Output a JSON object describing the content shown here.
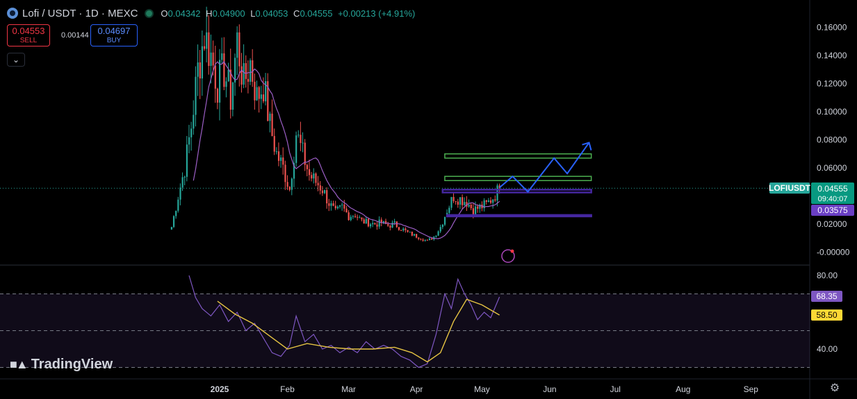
{
  "header": {
    "symbol": "Lofi / USDT · 1D · MEXC",
    "open_key": "O",
    "open": "0.04342",
    "high_key": "H",
    "high": "0.04900",
    "low_key": "L",
    "low": "0.04053",
    "close_key": "C",
    "close": "0.04555",
    "change": "+0.00213 (+4.91%)"
  },
  "trade": {
    "sell_price": "0.04553",
    "sell_label": "SELL",
    "spread": "0.00144",
    "buy_price": "0.04697",
    "buy_label": "BUY",
    "collapse_icon": "chevron-down-icon"
  },
  "branding": {
    "logo_text": "TradingView"
  },
  "colors": {
    "up": "#26a69a",
    "down": "#ef5350",
    "ma": "#9c5fc6",
    "rsi": "#7e57c2",
    "rsi_ma": "#e6c443",
    "green_zone": "#4caf50",
    "purple_zone": "#4527a0",
    "projection": "#2962ff"
  },
  "chart_data": [
    {
      "type": "line",
      "series_style": "candlestick",
      "y_ticks": [
        "0.16000",
        "0.14000",
        "0.12000",
        "0.10000",
        "0.08000",
        "0.06000",
        "0.02000",
        "-0.00000"
      ],
      "x_ticks": [
        "2025",
        "Feb",
        "Mar",
        "Apr",
        "May",
        "Jun",
        "Jul",
        "Aug",
        "Sep"
      ],
      "ylim": [
        -0.002,
        0.17
      ],
      "price_label": {
        "symbol": "LOFIUSDT",
        "value": "0.04555",
        "countdown": "09:40:07"
      },
      "level_label": "0.03575",
      "last_price": 0.04555,
      "close_series": [
        {
          "date": "2024-12-10",
          "v": 0.018
        },
        {
          "date": "2024-12-13",
          "v": 0.04
        },
        {
          "date": "2024-12-16",
          "v": 0.06
        },
        {
          "date": "2024-12-19",
          "v": 0.09
        },
        {
          "date": "2024-12-22",
          "v": 0.13
        },
        {
          "date": "2024-12-25",
          "v": 0.155
        },
        {
          "date": "2024-12-28",
          "v": 0.14
        },
        {
          "date": "2024-12-31",
          "v": 0.12
        },
        {
          "date": "2025-01-03",
          "v": 0.13
        },
        {
          "date": "2025-01-06",
          "v": 0.11
        },
        {
          "date": "2025-01-09",
          "v": 0.15
        },
        {
          "date": "2025-01-12",
          "v": 0.12
        },
        {
          "date": "2025-01-15",
          "v": 0.135
        },
        {
          "date": "2025-01-18",
          "v": 0.11
        },
        {
          "date": "2025-01-21",
          "v": 0.12
        },
        {
          "date": "2025-01-24",
          "v": 0.09
        },
        {
          "date": "2025-01-27",
          "v": 0.07
        },
        {
          "date": "2025-01-30",
          "v": 0.06
        },
        {
          "date": "2025-02-02",
          "v": 0.045
        },
        {
          "date": "2025-02-05",
          "v": 0.085
        },
        {
          "date": "2025-02-08",
          "v": 0.07
        },
        {
          "date": "2025-02-11",
          "v": 0.055
        },
        {
          "date": "2025-02-14",
          "v": 0.05
        },
        {
          "date": "2025-02-17",
          "v": 0.045
        },
        {
          "date": "2025-02-20",
          "v": 0.035
        },
        {
          "date": "2025-02-23",
          "v": 0.028
        },
        {
          "date": "2025-02-26",
          "v": 0.032
        },
        {
          "date": "2025-03-01",
          "v": 0.026
        },
        {
          "date": "2025-03-04",
          "v": 0.027
        },
        {
          "date": "2025-03-07",
          "v": 0.022
        },
        {
          "date": "2025-03-10",
          "v": 0.021
        },
        {
          "date": "2025-03-13",
          "v": 0.02
        },
        {
          "date": "2025-03-16",
          "v": 0.021
        },
        {
          "date": "2025-03-19",
          "v": 0.019
        },
        {
          "date": "2025-03-22",
          "v": 0.02
        },
        {
          "date": "2025-03-25",
          "v": 0.017
        },
        {
          "date": "2025-03-28",
          "v": 0.014
        },
        {
          "date": "2025-03-31",
          "v": 0.012
        },
        {
          "date": "2025-04-03",
          "v": 0.01
        },
        {
          "date": "2025-04-06",
          "v": 0.008
        },
        {
          "date": "2025-04-09",
          "v": 0.011
        },
        {
          "date": "2025-04-12",
          "v": 0.018
        },
        {
          "date": "2025-04-15",
          "v": 0.03
        },
        {
          "date": "2025-04-18",
          "v": 0.04
        },
        {
          "date": "2025-04-21",
          "v": 0.038
        },
        {
          "date": "2025-04-24",
          "v": 0.036
        },
        {
          "date": "2025-04-27",
          "v": 0.03
        },
        {
          "date": "2025-04-30",
          "v": 0.032
        },
        {
          "date": "2025-05-03",
          "v": 0.034
        },
        {
          "date": "2025-05-06",
          "v": 0.039
        },
        {
          "date": "2025-05-09",
          "v": 0.04555
        }
      ],
      "zones": [
        {
          "kind": "green",
          "top": 0.07,
          "bottom": 0.067,
          "from": "2025-04-14",
          "to": "2025-06-20"
        },
        {
          "kind": "green",
          "top": 0.054,
          "bottom": 0.051,
          "from": "2025-04-14",
          "to": "2025-06-20"
        },
        {
          "kind": "purple",
          "top": 0.0445,
          "bottom": 0.0425,
          "from": "2025-04-13",
          "to": "2025-06-20"
        },
        {
          "kind": "purple",
          "top": 0.0265,
          "bottom": 0.0255,
          "from": "2025-04-15",
          "to": "2025-06-20"
        }
      ],
      "projection": [
        {
          "date": "2025-05-09",
          "v": 0.046
        },
        {
          "date": "2025-05-15",
          "v": 0.054
        },
        {
          "date": "2025-05-22",
          "v": 0.043
        },
        {
          "date": "2025-06-03",
          "v": 0.067
        },
        {
          "date": "2025-06-09",
          "v": 0.056
        },
        {
          "date": "2025-06-19",
          "v": 0.078
        }
      ]
    },
    {
      "type": "line",
      "name": "RSI",
      "y_ticks": [
        "80.00",
        "40.00"
      ],
      "ylim": [
        25,
        85
      ],
      "rsi_label": "68.35",
      "rsi_ma_label": "58.50",
      "band": [
        70,
        30
      ],
      "rsi": [
        {
          "date": "2024-12-18",
          "v": 80
        },
        {
          "date": "2024-12-21",
          "v": 68
        },
        {
          "date": "2024-12-24",
          "v": 62
        },
        {
          "date": "2024-12-28",
          "v": 58
        },
        {
          "date": "2025-01-01",
          "v": 64
        },
        {
          "date": "2025-01-05",
          "v": 55
        },
        {
          "date": "2025-01-09",
          "v": 60
        },
        {
          "date": "2025-01-13",
          "v": 50
        },
        {
          "date": "2025-01-17",
          "v": 54
        },
        {
          "date": "2025-01-21",
          "v": 46
        },
        {
          "date": "2025-01-25",
          "v": 38
        },
        {
          "date": "2025-01-29",
          "v": 36
        },
        {
          "date": "2025-02-02",
          "v": 42
        },
        {
          "date": "2025-02-05",
          "v": 58
        },
        {
          "date": "2025-02-09",
          "v": 44
        },
        {
          "date": "2025-02-13",
          "v": 48
        },
        {
          "date": "2025-02-17",
          "v": 40
        },
        {
          "date": "2025-02-21",
          "v": 42
        },
        {
          "date": "2025-02-25",
          "v": 38
        },
        {
          "date": "2025-03-01",
          "v": 41
        },
        {
          "date": "2025-03-05",
          "v": 38
        },
        {
          "date": "2025-03-09",
          "v": 44
        },
        {
          "date": "2025-03-13",
          "v": 40
        },
        {
          "date": "2025-03-17",
          "v": 42
        },
        {
          "date": "2025-03-21",
          "v": 40
        },
        {
          "date": "2025-03-25",
          "v": 36
        },
        {
          "date": "2025-03-29",
          "v": 34
        },
        {
          "date": "2025-04-02",
          "v": 30
        },
        {
          "date": "2025-04-06",
          "v": 32
        },
        {
          "date": "2025-04-10",
          "v": 48
        },
        {
          "date": "2025-04-14",
          "v": 70
        },
        {
          "date": "2025-04-17",
          "v": 62
        },
        {
          "date": "2025-04-20",
          "v": 78
        },
        {
          "date": "2025-04-23",
          "v": 70
        },
        {
          "date": "2025-04-26",
          "v": 64
        },
        {
          "date": "2025-04-29",
          "v": 56
        },
        {
          "date": "2025-05-02",
          "v": 60
        },
        {
          "date": "2025-05-05",
          "v": 57
        },
        {
          "date": "2025-05-09",
          "v": 68.35
        }
      ],
      "rsi_ma": [
        {
          "date": "2024-12-31",
          "v": 66
        },
        {
          "date": "2025-01-08",
          "v": 59
        },
        {
          "date": "2025-01-16",
          "v": 54
        },
        {
          "date": "2025-01-24",
          "v": 47
        },
        {
          "date": "2025-02-01",
          "v": 40
        },
        {
          "date": "2025-02-10",
          "v": 43
        },
        {
          "date": "2025-02-20",
          "v": 41
        },
        {
          "date": "2025-03-02",
          "v": 40
        },
        {
          "date": "2025-03-12",
          "v": 40
        },
        {
          "date": "2025-03-22",
          "v": 41
        },
        {
          "date": "2025-03-30",
          "v": 38
        },
        {
          "date": "2025-04-06",
          "v": 33
        },
        {
          "date": "2025-04-12",
          "v": 38
        },
        {
          "date": "2025-04-18",
          "v": 55
        },
        {
          "date": "2025-04-24",
          "v": 67
        },
        {
          "date": "2025-05-01",
          "v": 64
        },
        {
          "date": "2025-05-09",
          "v": 58.5
        }
      ]
    }
  ]
}
